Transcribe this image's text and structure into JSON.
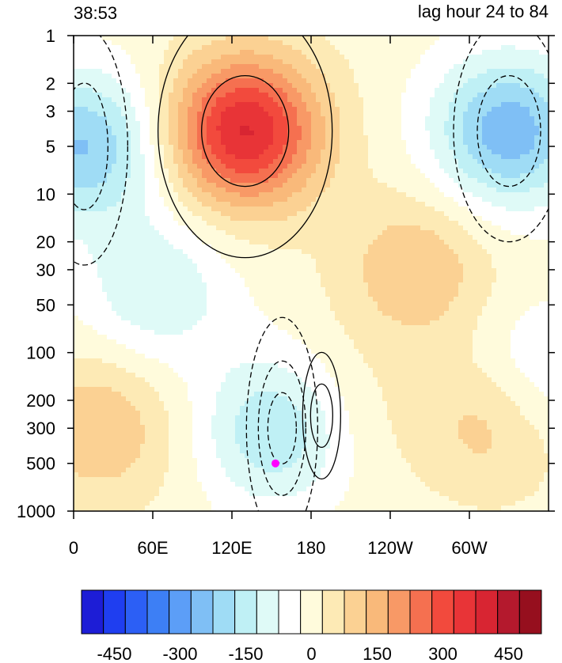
{
  "chart_data": {
    "type": "heatmap",
    "title_left": "38:53",
    "title_right": "lag hour 24 to 84",
    "x_ticks": [
      "0",
      "60E",
      "120E",
      "180",
      "120W",
      "60W"
    ],
    "x_tick_degrees": [
      0,
      60,
      120,
      180,
      240,
      300
    ],
    "x_range_degrees_east": [
      0,
      360
    ],
    "y_ticks": [
      "1",
      "2",
      "3",
      "5",
      "10",
      "20",
      "30",
      "50",
      "100",
      "200",
      "300",
      "500",
      "1000"
    ],
    "y_tick_values": [
      1,
      2,
      3,
      5,
      10,
      20,
      30,
      50,
      100,
      200,
      300,
      500,
      1000
    ],
    "y_range": [
      1,
      1000
    ],
    "y_scale": "log",
    "y_direction": "inverted",
    "colorbar": {
      "levels": [
        -525,
        -475,
        -425,
        -375,
        -325,
        -275,
        -225,
        -175,
        -125,
        -75,
        -25,
        25,
        75,
        125,
        175,
        225,
        275,
        325,
        375,
        425,
        475,
        525
      ],
      "colors": [
        "#1d1dd6",
        "#1f3ef0",
        "#2c5ff5",
        "#3d7ff5",
        "#5c9ef7",
        "#7fbff5",
        "#9fdcf5",
        "#bff0f5",
        "#dffaf7",
        "#ffffff",
        "#fffbdc",
        "#fdeab5",
        "#fbd193",
        "#f9b97a",
        "#f89966",
        "#f57050",
        "#f24a3d",
        "#e83437",
        "#d82532",
        "#b4192d",
        "#960f1e"
      ],
      "tick_labels": [
        "-450",
        "-300",
        "-150",
        "0",
        "150",
        "300",
        "450"
      ],
      "tick_values": [
        -450,
        -300,
        -150,
        0,
        150,
        300,
        450
      ]
    },
    "marker": {
      "lon": 153,
      "level": 500,
      "color": "#ff00ff"
    },
    "centers": [
      {
        "lon": 130,
        "level": 4,
        "value": 380
      },
      {
        "lon": 158,
        "level": 300,
        "value": -220
      },
      {
        "lon": 8,
        "level": 5,
        "value": -230
      },
      {
        "lon": 330,
        "level": 4,
        "value": -260
      },
      {
        "lon": 345,
        "level": 150,
        "value": -120
      },
      {
        "lon": 62,
        "level": 40,
        "value": -120
      },
      {
        "lon": 20,
        "level": 300,
        "value": 120
      },
      {
        "lon": 320,
        "level": 250,
        "value": 140
      },
      {
        "lon": 188,
        "level": 250,
        "value": 80
      },
      {
        "lon": 260,
        "level": 30,
        "value": 120
      }
    ],
    "contours_solid": [
      "positive anomaly (upper troposphere/stratosphere 110E-230W)",
      "positive anomaly (200-500 near 185)"
    ],
    "contours_dashed": [
      "negative anomaly (west, 0-30E)",
      "negative anomaly (east, 280W-360)",
      "negative anomaly (near 160E, 100-1000)"
    ]
  }
}
